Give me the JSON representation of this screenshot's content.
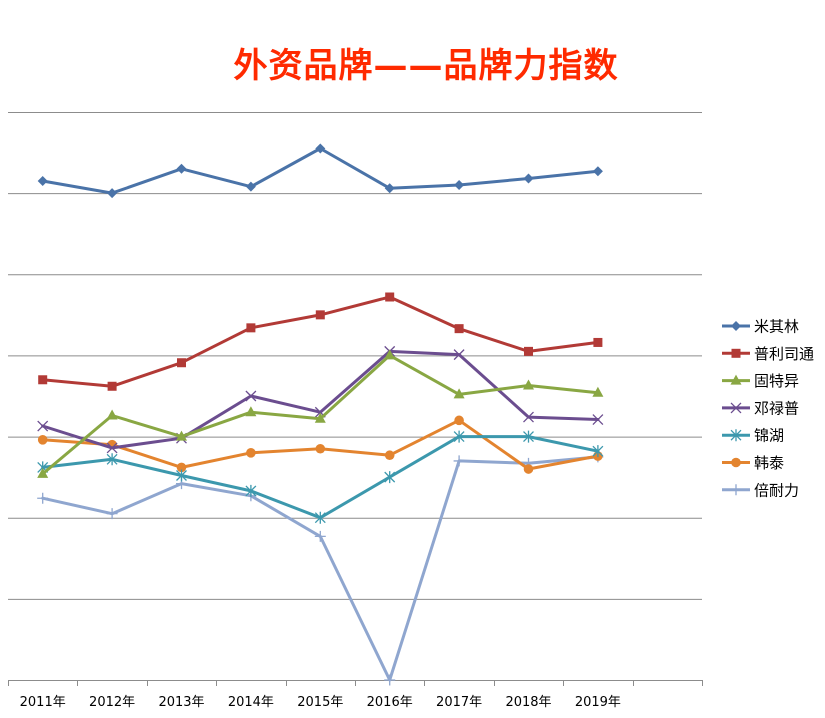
{
  "chart_data": {
    "type": "line",
    "title": "外资品牌——品牌力指数",
    "categories": [
      "2011年",
      "2012年",
      "2013年",
      "2014年",
      "2015年",
      "2016年",
      "2017年",
      "2018年",
      "2019年"
    ],
    "ylim": [
      0,
      7
    ],
    "grid": true,
    "legend_position": "right",
    "series": [
      {
        "name": "米其林",
        "color": "#4a73a8",
        "marker": "diamond",
        "values": [
          6.15,
          6.0,
          6.3,
          6.08,
          6.55,
          6.06,
          6.1,
          6.18,
          6.27
        ]
      },
      {
        "name": "普利司通",
        "color": "#b23a36",
        "marker": "square",
        "values": [
          3.7,
          3.62,
          3.91,
          4.34,
          4.5,
          4.72,
          4.33,
          4.05,
          4.16
        ]
      },
      {
        "name": "固特异",
        "color": "#89a743",
        "marker": "triangle",
        "values": [
          2.54,
          3.26,
          3.0,
          3.3,
          3.22,
          4.0,
          3.52,
          3.63,
          3.54
        ]
      },
      {
        "name": "邓禄普",
        "color": "#6b4d8f",
        "marker": "x",
        "values": [
          3.13,
          2.86,
          2.98,
          3.5,
          3.3,
          4.05,
          4.01,
          3.24,
          3.21
        ]
      },
      {
        "name": "锦湖",
        "color": "#3c98ad",
        "marker": "asterisk",
        "values": [
          2.62,
          2.72,
          2.52,
          2.33,
          2.0,
          2.5,
          3.0,
          3.0,
          2.82
        ]
      },
      {
        "name": "韩泰",
        "color": "#e3842f",
        "marker": "circle",
        "values": [
          2.96,
          2.9,
          2.62,
          2.8,
          2.85,
          2.77,
          3.2,
          2.6,
          2.76
        ]
      },
      {
        "name": "倍耐力",
        "color": "#8fa6cf",
        "marker": "plus",
        "values": [
          2.24,
          2.05,
          2.42,
          2.27,
          1.77,
          0.0,
          2.7,
          2.67,
          2.75
        ]
      }
    ]
  }
}
